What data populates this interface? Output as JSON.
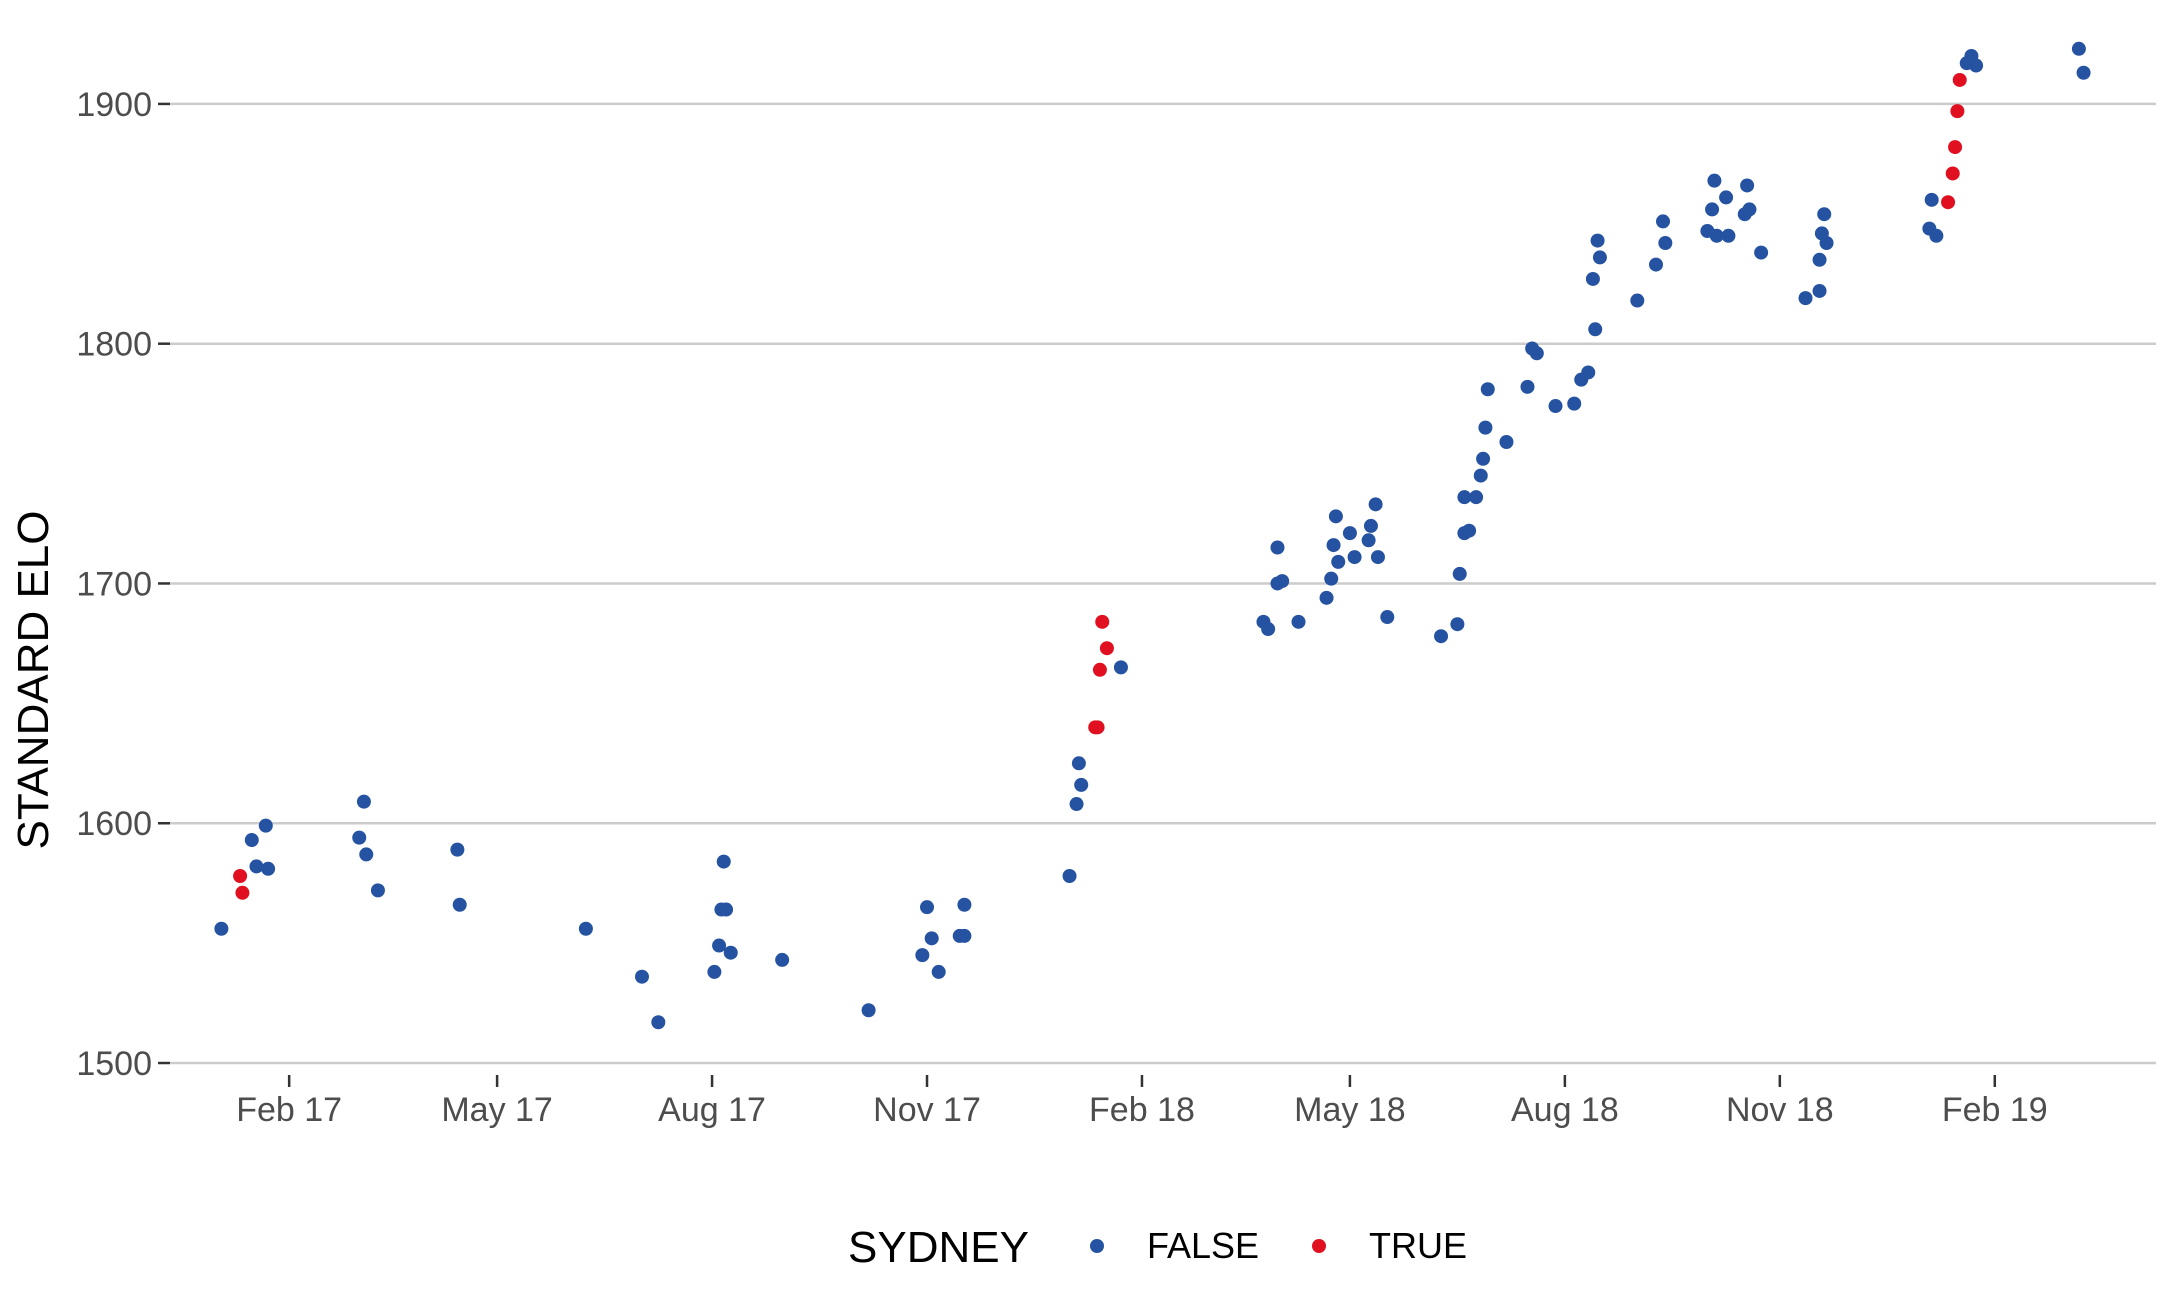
{
  "chart_data": {
    "type": "scatter",
    "title": "",
    "xlabel": "",
    "ylabel": "STANDARD ELO",
    "x_type": "date",
    "xlim": [
      "2016-12-12",
      "2019-04-11"
    ],
    "ylim": [
      1495,
      1935
    ],
    "y_ticks": [
      1500,
      1600,
      1700,
      1800,
      1900
    ],
    "x_ticks": [
      {
        "date": "2017-02-01",
        "label": "Feb 17"
      },
      {
        "date": "2017-05-01",
        "label": "May 17"
      },
      {
        "date": "2017-08-01",
        "label": "Aug 17"
      },
      {
        "date": "2017-11-01",
        "label": "Nov 17"
      },
      {
        "date": "2018-02-01",
        "label": "Feb 18"
      },
      {
        "date": "2018-05-01",
        "label": "May 18"
      },
      {
        "date": "2018-08-01",
        "label": "Aug 18"
      },
      {
        "date": "2018-11-01",
        "label": "Nov 18"
      },
      {
        "date": "2019-02-01",
        "label": "Feb 19"
      }
    ],
    "grid": "horizontal-major",
    "legend": {
      "title": "SYDNEY",
      "position": "bottom"
    },
    "series": [
      {
        "name": "FALSE",
        "color": "#2553a1",
        "points": [
          [
            "2017-01-03",
            1556
          ],
          [
            "2017-01-16",
            1593
          ],
          [
            "2017-01-18",
            1582
          ],
          [
            "2017-01-22",
            1599
          ],
          [
            "2017-01-23",
            1581
          ],
          [
            "2017-03-05",
            1609
          ],
          [
            "2017-03-03",
            1594
          ],
          [
            "2017-03-06",
            1587
          ],
          [
            "2017-03-11",
            1572
          ],
          [
            "2017-04-14",
            1589
          ],
          [
            "2017-04-15",
            1566
          ],
          [
            "2017-06-08",
            1556
          ],
          [
            "2017-07-02",
            1536
          ],
          [
            "2017-07-09",
            1517
          ],
          [
            "2017-08-02",
            1538
          ],
          [
            "2017-08-04",
            1549
          ],
          [
            "2017-08-05",
            1564
          ],
          [
            "2017-08-06",
            1584
          ],
          [
            "2017-08-07",
            1564
          ],
          [
            "2017-08-09",
            1546
          ],
          [
            "2017-08-31",
            1543
          ],
          [
            "2017-10-07",
            1522
          ],
          [
            "2017-10-30",
            1545
          ],
          [
            "2017-11-01",
            1565
          ],
          [
            "2017-11-03",
            1552
          ],
          [
            "2017-11-06",
            1538
          ],
          [
            "2017-11-15",
            1553
          ],
          [
            "2017-11-17",
            1566
          ],
          [
            "2017-11-17",
            1553
          ],
          [
            "2018-01-01",
            1578
          ],
          [
            "2018-01-04",
            1608
          ],
          [
            "2018-01-05",
            1625
          ],
          [
            "2018-01-06",
            1616
          ],
          [
            "2018-01-23",
            1665
          ],
          [
            "2018-03-25",
            1684
          ],
          [
            "2018-03-27",
            1681
          ],
          [
            "2018-03-31",
            1700
          ],
          [
            "2018-03-31",
            1715
          ],
          [
            "2018-04-02",
            1701
          ],
          [
            "2018-04-09",
            1684
          ],
          [
            "2018-04-21",
            1694
          ],
          [
            "2018-04-23",
            1702
          ],
          [
            "2018-04-24",
            1716
          ],
          [
            "2018-04-25",
            1728
          ],
          [
            "2018-04-26",
            1709
          ],
          [
            "2018-05-01",
            1721
          ],
          [
            "2018-05-03",
            1711
          ],
          [
            "2018-05-09",
            1718
          ],
          [
            "2018-05-10",
            1724
          ],
          [
            "2018-05-12",
            1733
          ],
          [
            "2018-05-13",
            1711
          ],
          [
            "2018-05-17",
            1686
          ],
          [
            "2018-06-09",
            1678
          ],
          [
            "2018-06-16",
            1683
          ],
          [
            "2018-06-17",
            1704
          ],
          [
            "2018-06-19",
            1721
          ],
          [
            "2018-06-19",
            1736
          ],
          [
            "2018-06-21",
            1722
          ],
          [
            "2018-06-24",
            1736
          ],
          [
            "2018-06-26",
            1745
          ],
          [
            "2018-06-27",
            1752
          ],
          [
            "2018-06-28",
            1765
          ],
          [
            "2018-06-29",
            1781
          ],
          [
            "2018-07-07",
            1759
          ],
          [
            "2018-07-16",
            1782
          ],
          [
            "2018-07-18",
            1798
          ],
          [
            "2018-07-20",
            1796
          ],
          [
            "2018-07-28",
            1774
          ],
          [
            "2018-08-05",
            1775
          ],
          [
            "2018-08-08",
            1785
          ],
          [
            "2018-08-11",
            1788
          ],
          [
            "2018-08-14",
            1806
          ],
          [
            "2018-08-13",
            1827
          ],
          [
            "2018-08-15",
            1843
          ],
          [
            "2018-08-16",
            1836
          ],
          [
            "2018-09-01",
            1818
          ],
          [
            "2018-09-09",
            1833
          ],
          [
            "2018-09-12",
            1851
          ],
          [
            "2018-09-13",
            1842
          ],
          [
            "2018-10-01",
            1847
          ],
          [
            "2018-10-03",
            1856
          ],
          [
            "2018-10-04",
            1868
          ],
          [
            "2018-10-05",
            1845
          ],
          [
            "2018-10-09",
            1861
          ],
          [
            "2018-10-10",
            1845
          ],
          [
            "2018-10-17",
            1854
          ],
          [
            "2018-10-18",
            1866
          ],
          [
            "2018-10-19",
            1856
          ],
          [
            "2018-10-24",
            1838
          ],
          [
            "2018-11-12",
            1819
          ],
          [
            "2018-11-18",
            1822
          ],
          [
            "2018-11-18",
            1835
          ],
          [
            "2018-11-19",
            1846
          ],
          [
            "2018-11-20",
            1854
          ],
          [
            "2018-11-21",
            1842
          ],
          [
            "2019-01-04",
            1848
          ],
          [
            "2019-01-05",
            1860
          ],
          [
            "2019-01-07",
            1845
          ],
          [
            "2019-01-20",
            1917
          ],
          [
            "2019-01-22",
            1920
          ],
          [
            "2019-01-24",
            1916
          ],
          [
            "2019-03-09",
            1923
          ],
          [
            "2019-03-11",
            1913
          ]
        ]
      },
      {
        "name": "TRUE",
        "color": "#e01020",
        "points": [
          [
            "2017-01-11",
            1578
          ],
          [
            "2017-01-12",
            1571
          ],
          [
            "2018-01-12",
            1640
          ],
          [
            "2018-01-13",
            1640
          ],
          [
            "2018-01-14",
            1664
          ],
          [
            "2018-01-15",
            1684
          ],
          [
            "2018-01-17",
            1673
          ],
          [
            "2019-01-12",
            1859
          ],
          [
            "2019-01-14",
            1871
          ],
          [
            "2019-01-15",
            1882
          ],
          [
            "2019-01-16",
            1897
          ],
          [
            "2019-01-17",
            1910
          ]
        ]
      }
    ]
  }
}
